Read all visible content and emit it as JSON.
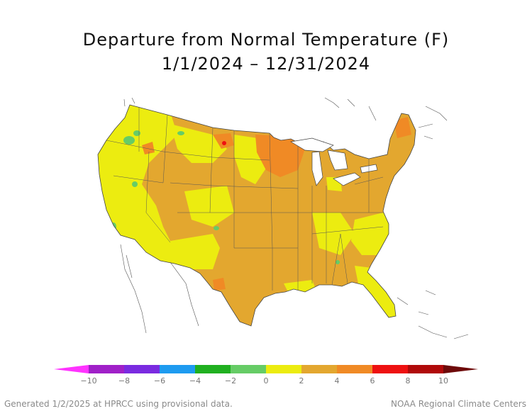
{
  "title": {
    "line1": "Departure from Normal Temperature (F)",
    "line2": "1/1/2024 – 12/31/2024"
  },
  "legend": {
    "ticks": [
      "−10",
      "−8",
      "−6",
      "−4",
      "−2",
      "0",
      "2",
      "4",
      "6",
      "8",
      "10"
    ],
    "bins": [
      {
        "from": -10,
        "to": -8,
        "color": "#a020c8"
      },
      {
        "from": -8,
        "to": -6,
        "color": "#7a2be0"
      },
      {
        "from": -6,
        "to": -4,
        "color": "#1e9bf0"
      },
      {
        "from": -4,
        "to": -2,
        "color": "#20b020"
      },
      {
        "from": -2,
        "to": 0,
        "color": "#66cc66"
      },
      {
        "from": 0,
        "to": 2,
        "color": "#ecec10"
      },
      {
        "from": 2,
        "to": 4,
        "color": "#e3a72f"
      },
      {
        "from": 4,
        "to": 6,
        "color": "#f08a25"
      },
      {
        "from": 6,
        "to": 8,
        "color": "#ee1111"
      },
      {
        "from": 8,
        "to": 10,
        "color": "#b00a0a"
      }
    ],
    "below_color": "#ff33ff",
    "above_color": "#6e0a0a"
  },
  "map": {
    "land_base_color": "#e3a72f",
    "outline_color": "#444444"
  },
  "footer": {
    "left": "Generated 1/2/2025 at HPRCC using provisional data.",
    "right": "NOAA Regional Climate Centers"
  }
}
